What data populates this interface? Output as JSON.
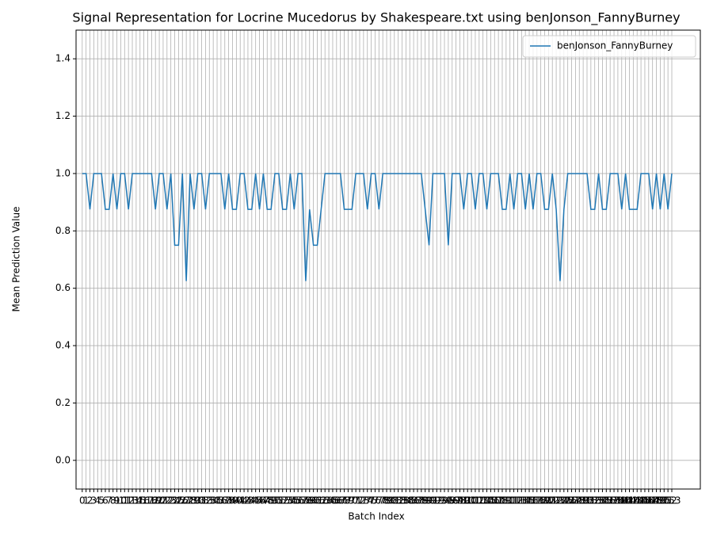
{
  "chart_data": {
    "type": "line",
    "title": "Signal Representation for Locrine Mucedorus by Shakespeare.txt using benJonson_FannyBurney",
    "xlabel": "Batch Index",
    "ylabel": "Mean Prediction Value",
    "x": [
      0,
      1,
      2,
      3,
      4,
      5,
      6,
      7,
      8,
      9,
      10,
      11,
      12,
      13,
      14,
      15,
      16,
      17,
      18,
      19,
      20,
      21,
      22,
      23,
      24,
      25,
      26,
      27,
      28,
      29,
      30,
      31,
      32,
      33,
      34,
      35,
      36,
      37,
      38,
      39,
      40,
      41,
      42,
      43,
      44,
      45,
      46,
      47,
      48,
      49,
      50,
      51,
      52,
      53,
      54,
      55,
      56,
      57,
      58,
      59,
      60,
      61,
      62,
      63,
      64,
      65,
      66,
      67,
      68,
      69,
      70,
      71,
      72,
      73,
      74,
      75,
      76,
      77,
      78,
      79,
      80,
      81,
      82,
      83,
      84,
      85,
      86,
      87,
      88,
      89,
      90,
      91,
      92,
      93,
      94,
      95,
      96,
      97,
      98,
      99,
      100,
      101,
      102,
      103,
      104,
      105,
      106,
      107,
      108,
      109,
      110,
      111,
      112,
      113,
      114,
      115,
      116,
      117,
      118,
      119,
      120,
      121,
      122,
      123,
      124,
      125,
      126,
      127,
      128,
      129,
      130,
      131,
      132,
      133,
      134,
      135,
      136,
      137,
      138,
      139,
      140,
      141,
      142,
      143,
      144,
      145,
      146,
      147,
      148,
      149,
      150,
      151,
      152,
      153
    ],
    "series": [
      {
        "name": "benJonson_FannyBurney",
        "color": "#1f77b4",
        "values": [
          1,
          1,
          0.875,
          1,
          1,
          1,
          0.875,
          0.875,
          1,
          0.875,
          1,
          1,
          0.875,
          1,
          1,
          1,
          1,
          1,
          1,
          0.875,
          1,
          1,
          0.875,
          1,
          0.75,
          0.75,
          1,
          0.625,
          1,
          0.875,
          1,
          1,
          0.875,
          1,
          1,
          1,
          1,
          0.875,
          1,
          0.875,
          0.875,
          1,
          1,
          0.875,
          0.875,
          1,
          0.875,
          1,
          0.875,
          0.875,
          1,
          1,
          0.875,
          0.875,
          1,
          0.875,
          1,
          1,
          0.625,
          0.875,
          0.75,
          0.75,
          0.875,
          1,
          1,
          1,
          1,
          1,
          0.875,
          0.875,
          0.875,
          1,
          1,
          1,
          0.875,
          1,
          1,
          0.875,
          1,
          1,
          1,
          1,
          1,
          1,
          1,
          1,
          1,
          1,
          1,
          0.875,
          0.75,
          1,
          1,
          1,
          1,
          0.75,
          1,
          1,
          1,
          0.875,
          1,
          1,
          0.875,
          1,
          1,
          0.875,
          1,
          1,
          1,
          0.875,
          0.875,
          1,
          0.875,
          1,
          1,
          0.875,
          1,
          0.875,
          1,
          1,
          0.875,
          0.875,
          1,
          0.875,
          0.625,
          0.875,
          1,
          1,
          1,
          1,
          1,
          1,
          0.875,
          0.875,
          1,
          0.875,
          0.875,
          1,
          1,
          1,
          0.875,
          1,
          0.875,
          0.875,
          0.875,
          1,
          1,
          1,
          0.875,
          1,
          0.875,
          1,
          0.875,
          1
        ]
      }
    ],
    "xlim": [
      -1.6,
      160.4
    ],
    "xticks": [
      0,
      1,
      2,
      3,
      4,
      5,
      6,
      7,
      8,
      9,
      10,
      11,
      12,
      13,
      14,
      15,
      16,
      17,
      18,
      19,
      20,
      21,
      22,
      23,
      24,
      25,
      26,
      27,
      28,
      29,
      30,
      31,
      32,
      33,
      34,
      35,
      36,
      37,
      38,
      39,
      40,
      41,
      42,
      43,
      44,
      45,
      46,
      47,
      48,
      49,
      50,
      51,
      52,
      53,
      54,
      55,
      56,
      57,
      58,
      59,
      60,
      61,
      62,
      63,
      64,
      65,
      66,
      67,
      68,
      69,
      70,
      71,
      72,
      73,
      74,
      75,
      76,
      77,
      78,
      79,
      80,
      81,
      82,
      83,
      84,
      85,
      86,
      87,
      88,
      89,
      90,
      91,
      92,
      93,
      94,
      95,
      96,
      97,
      98,
      99,
      100,
      101,
      102,
      103,
      104,
      105,
      106,
      107,
      108,
      109,
      110,
      111,
      112,
      113,
      114,
      115,
      116,
      117,
      118,
      119,
      120,
      121,
      122,
      123,
      124,
      125,
      126,
      127,
      128,
      129,
      130,
      131,
      132,
      133,
      134,
      135,
      136,
      137,
      138,
      139,
      140,
      141,
      142,
      143,
      144,
      145,
      146,
      147,
      148,
      149,
      150,
      151,
      152,
      153
    ],
    "ylim": [
      -0.1,
      1.5
    ],
    "yticks": [
      {
        "value": 0,
        "label": "0.0"
      },
      0.2,
      0.4,
      0.6,
      0.8,
      {
        "value": 1,
        "label": "1.0"
      },
      1.2,
      1.4
    ],
    "grid": true,
    "legend": "upper right"
  }
}
